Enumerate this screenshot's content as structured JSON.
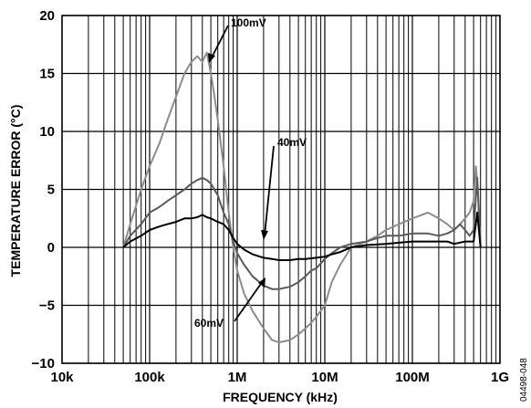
{
  "chart_data": {
    "type": "line",
    "xlabel": "FREQUENCY (kHz)",
    "ylabel": "TEMPERATURE ERROR (°C)",
    "xscale": "log",
    "xlim": [
      10000,
      1000000000
    ],
    "ylim": [
      -10,
      20
    ],
    "grid": true,
    "x_tick_labels": [
      "10k",
      "100k",
      "1M",
      "10M",
      "100M",
      "1G"
    ],
    "y_tick_labels": [
      "20",
      "15",
      "10",
      "5",
      "0",
      "−5",
      "−10"
    ],
    "annotations": [
      "100mV",
      "40mV",
      "60mV"
    ],
    "figure_id": "04498-048",
    "series": [
      {
        "name": "100mV",
        "color": "#8c8c8c",
        "x": [
          50000,
          60000,
          80000,
          100000,
          130000,
          160000,
          200000,
          250000,
          300000,
          350000,
          400000,
          450000,
          500000,
          550000,
          600000,
          700000,
          800000,
          900000,
          1000000,
          1200000,
          1500000,
          2000000,
          2500000,
          3000000,
          4000000,
          5000000,
          6000000,
          7000000,
          8000000,
          10000000,
          12000000,
          15000000,
          20000000,
          30000000,
          40000000,
          50000000,
          70000000,
          100000000,
          150000000,
          200000000,
          250000000,
          300000000,
          350000000,
          400000000,
          450000000,
          500000000,
          530000000,
          560000000,
          600000000
        ],
        "y": [
          0,
          2,
          5,
          7,
          9,
          11,
          13,
          15,
          16,
          16.5,
          16,
          16.8,
          15,
          13,
          11,
          7,
          3,
          0,
          -2,
          -4,
          -5.5,
          -7,
          -8,
          -8.2,
          -8,
          -7.5,
          -7,
          -6.5,
          -6,
          -5,
          -3,
          -1.5,
          0,
          0.5,
          1,
          1.5,
          2,
          2.5,
          3,
          2.5,
          2,
          1.5,
          2,
          2.5,
          3,
          4,
          7,
          5,
          0
        ]
      },
      {
        "name": "60mV",
        "color": "#5a5a5a",
        "x": [
          50000,
          60000,
          80000,
          100000,
          130000,
          160000,
          200000,
          250000,
          300000,
          350000,
          400000,
          450000,
          500000,
          600000,
          700000,
          800000,
          900000,
          1000000,
          1200000,
          1500000,
          2000000,
          2500000,
          3000000,
          4000000,
          5000000,
          6000000,
          7000000,
          8000000,
          10000000,
          12000000,
          15000000,
          20000000,
          30000000,
          40000000,
          50000000,
          70000000,
          100000000,
          150000000,
          200000000,
          250000000,
          300000000,
          350000000,
          400000000,
          450000000,
          500000000,
          550000000,
          600000000
        ],
        "y": [
          0,
          1,
          2,
          3,
          3.5,
          4,
          4.5,
          5,
          5.5,
          5.8,
          6,
          5.8,
          5.5,
          4.5,
          3,
          2,
          0.5,
          -0.5,
          -1.5,
          -2.5,
          -3.3,
          -3.6,
          -3.6,
          -3.4,
          -3,
          -2.5,
          -2,
          -1.8,
          -1,
          -0.5,
          0,
          0.3,
          0.5,
          0.8,
          1,
          1,
          1.2,
          1.2,
          1,
          1.2,
          1.5,
          2,
          1.5,
          1,
          1.5,
          6,
          0
        ]
      },
      {
        "name": "40mV",
        "color": "#000000",
        "x": [
          50000,
          60000,
          80000,
          100000,
          130000,
          160000,
          200000,
          250000,
          300000,
          350000,
          400000,
          450000,
          500000,
          600000,
          700000,
          800000,
          900000,
          1000000,
          1200000,
          1500000,
          2000000,
          2500000,
          3000000,
          4000000,
          5000000,
          6000000,
          8000000,
          10000000,
          12000000,
          15000000,
          20000000,
          30000000,
          50000000,
          70000000,
          100000000,
          150000000,
          200000000,
          250000000,
          300000000,
          400000000,
          500000000,
          550000000,
          600000000
        ],
        "y": [
          0,
          0.5,
          1,
          1.5,
          1.8,
          2,
          2.2,
          2.5,
          2.5,
          2.6,
          2.8,
          2.6,
          2.5,
          2.2,
          2,
          1.5,
          0.8,
          0.3,
          -0.2,
          -0.6,
          -0.9,
          -1,
          -1.1,
          -1.1,
          -1,
          -1,
          -0.9,
          -0.8,
          -0.6,
          -0.4,
          0,
          0.2,
          0.3,
          0.4,
          0.5,
          0.5,
          0.5,
          0.5,
          0.3,
          0.5,
          0.5,
          3,
          0
        ]
      }
    ]
  }
}
